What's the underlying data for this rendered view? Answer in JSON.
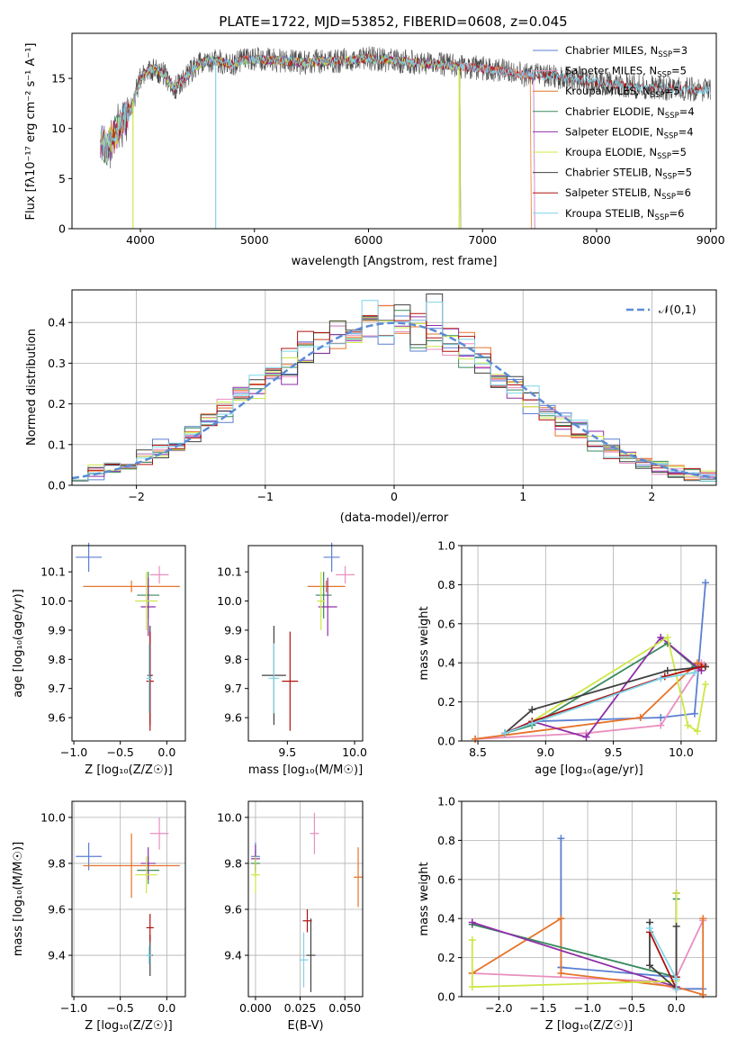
{
  "chart_data": [
    {
      "type": "line",
      "title": "PLATE=1722, MJD=53852, FIBERID=0608, z=0.045",
      "xlabel": "wavelength [Angstrom, rest frame]",
      "ylabel": "Flux [fλ10⁻¹⁷ erg cm⁻² s⁻¹ A⁻¹]",
      "xlim": [
        3400,
        9050
      ],
      "ylim": [
        0,
        19.5
      ],
      "xticks": [
        "4000",
        "5000",
        "6000",
        "7000",
        "8000",
        "9000"
      ],
      "yticks": [
        "0",
        "5",
        "10",
        "15"
      ],
      "grid": false,
      "legend_position": "top-right",
      "spectrum_envelope": {
        "wavelength": [
          3650,
          3700,
          3800,
          3900,
          4000,
          4100,
          4200,
          4300,
          4400,
          4500,
          4600,
          4700,
          4800,
          4900,
          5000,
          5200,
          5400,
          5600,
          5800,
          6000,
          6200,
          6400,
          6600,
          6800,
          7000,
          7200,
          7400,
          7600,
          7800,
          8000,
          8200,
          8400,
          8600,
          8800,
          9000
        ],
        "flux": [
          9.0,
          7.8,
          10.0,
          11.5,
          15.0,
          16.0,
          15.5,
          14.0,
          15.2,
          16.3,
          16.8,
          16.7,
          16.4,
          16.8,
          16.9,
          16.8,
          16.6,
          16.7,
          16.8,
          17.0,
          16.8,
          16.6,
          16.4,
          16.2,
          16.0,
          15.7,
          15.3,
          15.2,
          14.9,
          14.6,
          14.3,
          14.1,
          14.0,
          13.9,
          13.8
        ]
      },
      "series": [
        {
          "name": "Chabrier MILES, N_SSP=3",
          "color": "#5b7fd1",
          "wmax": 7450
        },
        {
          "name": "Salpeter MILES, N_SSP=5",
          "color": "#e88fbf",
          "wmax": 7450
        },
        {
          "name": "Kroupa MILES, N_SSP=5",
          "color": "#e6732a",
          "wmax": 7420
        },
        {
          "name": "Chabrier ELODIE, N_SSP=4",
          "color": "#3a8a5c",
          "wmax": 6800
        },
        {
          "name": "Salpeter ELODIE, N_SSP=4",
          "color": "#8e2ea8",
          "wmax": 6800
        },
        {
          "name": "Kroupa ELODIE, N_SSP=5",
          "color": "#cce845",
          "wmax": 6800
        },
        {
          "name": "Chabrier STELIB, N_SSP=5",
          "color": "#404040",
          "wmax": 9000
        },
        {
          "name": "Salpeter STELIB, N_SSP=6",
          "color": "#b01010",
          "wmax": 9000
        },
        {
          "name": "Kroupa STELIB, N_SSP=6",
          "color": "#7fd4e8",
          "wmax": 9000
        }
      ],
      "legend": [
        {
          "pre": "Chabrier MILES, N",
          "sub": "SSP",
          "post": "=3"
        },
        {
          "pre": "Salpeter MILES, N",
          "sub": "SSP",
          "post": "=5"
        },
        {
          "pre": "Kroupa MILES, N",
          "sub": "SSP",
          "post": "=5"
        },
        {
          "pre": "Chabrier ELODIE, N",
          "sub": "SSP",
          "post": "=4"
        },
        {
          "pre": "Salpeter ELODIE, N",
          "sub": "SSP",
          "post": "=4"
        },
        {
          "pre": "Kroupa ELODIE, N",
          "sub": "SSP",
          "post": "=5"
        },
        {
          "pre": "Chabrier STELIB, N",
          "sub": "SSP",
          "post": "=5"
        },
        {
          "pre": "Salpeter STELIB, N",
          "sub": "SSP",
          "post": "=6"
        },
        {
          "pre": "Kroupa STELIB, N",
          "sub": "SSP",
          "post": "=6"
        }
      ]
    },
    {
      "type": "bar",
      "xlabel": "(data-model)/error",
      "ylabel": "Normed distribution",
      "xlim": [
        -2.5,
        2.5
      ],
      "ylim": [
        0,
        0.48
      ],
      "xticks": [
        "−2",
        "−1",
        "0",
        "1",
        "2"
      ],
      "yticks": [
        "0.0",
        "0.1",
        "0.2",
        "0.3",
        "0.4"
      ],
      "grid": true,
      "legend_position": "top-right",
      "reference_curve": {
        "name": "𝒩(0,1)",
        "color": "#5b8bd6",
        "style": "dashed"
      },
      "bin_width": 0.125,
      "series": [
        {
          "name": "Chabrier MILES",
          "color": "#5b7fd1"
        },
        {
          "name": "Salpeter MILES",
          "color": "#e88fbf"
        },
        {
          "name": "Kroupa MILES",
          "color": "#e6732a"
        },
        {
          "name": "Chabrier ELODIE",
          "color": "#3a8a5c"
        },
        {
          "name": "Salpeter ELODIE",
          "color": "#8e2ea8"
        },
        {
          "name": "Kroupa ELODIE",
          "color": "#cce845"
        },
        {
          "name": "Chabrier STELIB",
          "color": "#404040"
        },
        {
          "name": "Salpeter STELIB",
          "color": "#b01010"
        },
        {
          "name": "Kroupa STELIB",
          "color": "#7fd4e8"
        }
      ]
    },
    {
      "type": "scatter",
      "xlabel": "Z [log₁₀(Z/Z☉)]",
      "ylabel": "age  [log₁₀(age/yr)]",
      "xlim": [
        -1.02,
        0.2
      ],
      "ylim": [
        9.52,
        10.19
      ],
      "xticks": [
        "−1.0",
        "−0.5",
        "0.0"
      ],
      "yticks": [
        "9.6",
        "9.7",
        "9.8",
        "9.9",
        "10.0",
        "10.1"
      ],
      "grid": false,
      "points": [
        {
          "x": -0.84,
          "y": 10.15,
          "xerr": 0.14,
          "yerr": 0.05,
          "color": "#5b7fd1"
        },
        {
          "x": -0.08,
          "y": 10.09,
          "xerr": 0.1,
          "yerr": 0.03,
          "color": "#e88fbf"
        },
        {
          "x": -0.38,
          "y": 10.05,
          "xerr": 0.52,
          "yerr": 0.02,
          "color": "#e6732a"
        },
        {
          "x": -0.2,
          "y": 10.02,
          "xerr": 0.12,
          "yerr": 0.08,
          "color": "#3a8a5c"
        },
        {
          "x": -0.2,
          "y": 9.98,
          "xerr": 0.08,
          "yerr": 0.1,
          "color": "#8e2ea8"
        },
        {
          "x": -0.22,
          "y": 10.0,
          "xerr": 0.12,
          "yerr": 0.1,
          "color": "#cce845"
        },
        {
          "x": -0.18,
          "y": 9.745,
          "xerr": 0.03,
          "yerr": 0.17,
          "color": "#404040"
        },
        {
          "x": -0.18,
          "y": 9.725,
          "xerr": 0.04,
          "yerr": 0.17,
          "color": "#b01010"
        },
        {
          "x": -0.19,
          "y": 9.735,
          "xerr": 0.03,
          "yerr": 0.12,
          "color": "#7fd4e8"
        }
      ]
    },
    {
      "type": "scatter",
      "xlabel": "mass [log₁₀(M/M☉)]",
      "ylabel": "",
      "xlim": [
        9.21,
        10.06
      ],
      "ylim": [
        9.52,
        10.19
      ],
      "xticks": [
        "9.5",
        "10.0"
      ],
      "yticks": [
        "9.6",
        "9.7",
        "9.8",
        "9.9",
        "10.0",
        "10.1"
      ],
      "grid": false,
      "points": [
        {
          "x": 9.83,
          "y": 10.15,
          "xerr": 0.06,
          "yerr": 0.05,
          "color": "#5b7fd1"
        },
        {
          "x": 9.93,
          "y": 10.09,
          "xerr": 0.07,
          "yerr": 0.03,
          "color": "#e88fbf"
        },
        {
          "x": 9.79,
          "y": 10.05,
          "xerr": 0.14,
          "yerr": 0.02,
          "color": "#e6732a"
        },
        {
          "x": 9.77,
          "y": 10.02,
          "xerr": 0.06,
          "yerr": 0.08,
          "color": "#3a8a5c"
        },
        {
          "x": 9.8,
          "y": 9.98,
          "xerr": 0.07,
          "yerr": 0.1,
          "color": "#8e2ea8"
        },
        {
          "x": 9.75,
          "y": 10.0,
          "xerr": 0.03,
          "yerr": 0.1,
          "color": "#cce845"
        },
        {
          "x": 9.4,
          "y": 9.745,
          "xerr": 0.09,
          "yerr": 0.17,
          "color": "#404040"
        },
        {
          "x": 9.52,
          "y": 9.725,
          "xerr": 0.06,
          "yerr": 0.17,
          "color": "#b01010"
        },
        {
          "x": 9.4,
          "y": 9.735,
          "xerr": 0.04,
          "yerr": 0.12,
          "color": "#7fd4e8"
        }
      ]
    },
    {
      "type": "line",
      "xlabel": "age  [log₁₀(age/yr)]",
      "ylabel": "mass weight",
      "xlim": [
        8.38,
        10.26
      ],
      "ylim": [
        0,
        1.0
      ],
      "xticks": [
        "8.5",
        "9.0",
        "9.5",
        "10.0"
      ],
      "yticks": [
        "0.0",
        "0.2",
        "0.4",
        "0.6",
        "0.8",
        "1.0"
      ],
      "grid": true,
      "series": [
        {
          "name": "Chabrier MILES",
          "color": "#5b7fd1",
          "x": [
            8.7,
            8.9,
            9.85,
            10.1,
            10.18
          ],
          "y": [
            0.04,
            0.1,
            0.12,
            0.14,
            0.81
          ]
        },
        {
          "name": "Salpeter MILES",
          "color": "#e88fbf",
          "x": [
            8.48,
            9.3,
            9.85,
            10.15,
            10.17
          ],
          "y": [
            0.01,
            0.04,
            0.08,
            0.4,
            0.39
          ]
        },
        {
          "name": "Kroupa MILES",
          "color": "#e6732a",
          "x": [
            8.48,
            9.7,
            10.12,
            10.18
          ],
          "y": [
            0.01,
            0.12,
            0.4,
            0.38
          ]
        },
        {
          "name": "Chabrier ELODIE",
          "color": "#3a8a5c",
          "x": [
            8.7,
            8.9,
            9.9,
            10.1
          ],
          "y": [
            0.04,
            0.08,
            0.5,
            0.38
          ]
        },
        {
          "name": "Salpeter ELODIE",
          "color": "#8e2ea8",
          "x": [
            8.9,
            9.3,
            9.85,
            10.15
          ],
          "y": [
            0.1,
            0.02,
            0.53,
            0.36
          ]
        },
        {
          "name": "Kroupa ELODIE",
          "color": "#cce845",
          "x": [
            8.9,
            9.9,
            10.05,
            10.12,
            10.18
          ],
          "y": [
            0.1,
            0.53,
            0.08,
            0.05,
            0.29
          ]
        },
        {
          "name": "Chabrier STELIB",
          "color": "#404040",
          "x": [
            8.7,
            8.9,
            9.9,
            10.18
          ],
          "y": [
            0.04,
            0.16,
            0.36,
            0.38
          ]
        },
        {
          "name": "Salpeter STELIB",
          "color": "#b01010",
          "x": [
            8.7,
            8.9,
            9.88,
            10.15
          ],
          "y": [
            0.04,
            0.1,
            0.33,
            0.38
          ]
        },
        {
          "name": "Kroupa STELIB",
          "color": "#7fd4e8",
          "x": [
            8.7,
            8.9,
            9.85,
            10.1
          ],
          "y": [
            0.04,
            0.09,
            0.32,
            0.35
          ]
        }
      ]
    },
    {
      "type": "scatter",
      "xlabel": "Z [log₁₀(Z/Z☉)]",
      "ylabel": "mass [log₁₀(M/M☉)]",
      "xlim": [
        -1.02,
        0.2
      ],
      "ylim": [
        9.22,
        10.07
      ],
      "xticks": [
        "−1.0",
        "−0.5",
        "0.0"
      ],
      "yticks": [
        "9.4",
        "9.6",
        "9.8",
        "10.0"
      ],
      "grid": true,
      "points": [
        {
          "x": -0.84,
          "y": 9.83,
          "xerr": 0.14,
          "yerr": 0.06,
          "color": "#5b7fd1"
        },
        {
          "x": -0.08,
          "y": 9.93,
          "xerr": 0.1,
          "yerr": 0.07,
          "color": "#e88fbf"
        },
        {
          "x": -0.38,
          "y": 9.79,
          "xerr": 0.52,
          "yerr": 0.14,
          "color": "#e6732a"
        },
        {
          "x": -0.2,
          "y": 9.77,
          "xerr": 0.12,
          "yerr": 0.06,
          "color": "#3a8a5c"
        },
        {
          "x": -0.2,
          "y": 9.8,
          "xerr": 0.08,
          "yerr": 0.07,
          "color": "#8e2ea8"
        },
        {
          "x": -0.22,
          "y": 9.75,
          "xerr": 0.12,
          "yerr": 0.08,
          "color": "#cce845"
        },
        {
          "x": -0.18,
          "y": 9.4,
          "xerr": 0.03,
          "yerr": 0.09,
          "color": "#404040"
        },
        {
          "x": -0.18,
          "y": 9.52,
          "xerr": 0.04,
          "yerr": 0.06,
          "color": "#b01010"
        },
        {
          "x": -0.19,
          "y": 9.4,
          "xerr": 0.03,
          "yerr": 0.04,
          "color": "#7fd4e8"
        }
      ]
    },
    {
      "type": "scatter",
      "xlabel": "E(B-V)",
      "ylabel": "",
      "xlim": [
        -0.004,
        0.06
      ],
      "ylim": [
        9.22,
        10.07
      ],
      "xticks": [
        "0.000",
        "0.025",
        "0.050"
      ],
      "yticks": [
        "9.4",
        "9.6",
        "9.8",
        "10.0"
      ],
      "grid": true,
      "points": [
        {
          "x": 0.0,
          "y": 9.83,
          "yerr": 0.06,
          "color": "#5b7fd1"
        },
        {
          "x": 0.033,
          "y": 9.93,
          "yerr": 0.09,
          "color": "#e88fbf"
        },
        {
          "x": 0.0575,
          "y": 9.74,
          "yerr": 0.13,
          "color": "#e6732a"
        },
        {
          "x": 0.0,
          "y": 9.8,
          "yerr": 0.06,
          "color": "#3a8a5c"
        },
        {
          "x": 0.0,
          "y": 9.82,
          "yerr": 0.06,
          "color": "#8e2ea8"
        },
        {
          "x": 0.0,
          "y": 9.75,
          "yerr": 0.08,
          "color": "#cce845"
        },
        {
          "x": 0.031,
          "y": 9.4,
          "yerr": 0.16,
          "color": "#404040"
        },
        {
          "x": 0.029,
          "y": 9.55,
          "yerr": 0.05,
          "color": "#b01010"
        },
        {
          "x": 0.027,
          "y": 9.38,
          "yerr": 0.12,
          "color": "#7fd4e8"
        }
      ]
    },
    {
      "type": "line",
      "xlabel": "Z [log₁₀(Z/Z☉)]",
      "ylabel": "mass weight",
      "xlim": [
        -2.42,
        0.45
      ],
      "ylim": [
        0,
        1.0
      ],
      "xticks": [
        "−2.0",
        "−1.5",
        "−1.0",
        "−0.5",
        "0.0"
      ],
      "yticks": [
        "0.0",
        "0.2",
        "0.4",
        "0.6",
        "0.8",
        "1.0"
      ],
      "grid": true,
      "series": [
        {
          "name": "Chabrier MILES",
          "color": "#5b7fd1",
          "x": [
            -1.3,
            -1.3,
            -1.3,
            0.0,
            0.0,
            0.3
          ],
          "y": [
            0.81,
            0.15,
            0.15,
            0.1,
            0.04,
            0.04
          ]
        },
        {
          "name": "Salpeter MILES",
          "color": "#e88fbf",
          "x": [
            -2.3,
            -0.3,
            0.0,
            0.0,
            0.3
          ],
          "y": [
            0.12,
            0.08,
            0.04,
            0.1,
            0.39
          ]
        },
        {
          "name": "Kroupa MILES",
          "color": "#e6732a",
          "x": [
            -2.3,
            -1.3,
            -1.3,
            0.0,
            0.3,
            0.3
          ],
          "y": [
            0.12,
            0.4,
            0.12,
            0.05,
            0.01,
            0.4
          ]
        },
        {
          "name": "Chabrier ELODIE",
          "color": "#3a8a5c",
          "x": [
            -2.3,
            0.0,
            0.0
          ],
          "y": [
            0.37,
            0.1,
            0.5
          ]
        },
        {
          "name": "Salpeter ELODIE",
          "color": "#8e2ea8",
          "x": [
            -2.3,
            0.0,
            0.0
          ],
          "y": [
            0.38,
            0.05,
            0.53
          ]
        },
        {
          "name": "Kroupa ELODIE",
          "color": "#cce845",
          "x": [
            -2.3,
            -2.3,
            0.0,
            0.0
          ],
          "y": [
            0.29,
            0.05,
            0.08,
            0.53
          ]
        },
        {
          "name": "Chabrier STELIB",
          "color": "#404040",
          "x": [
            -0.3,
            -0.3,
            0.0,
            0.0
          ],
          "y": [
            0.38,
            0.16,
            0.04,
            0.36
          ]
        },
        {
          "name": "Salpeter STELIB",
          "color": "#b01010",
          "x": [
            -0.3,
            0.0,
            0.0
          ],
          "y": [
            0.33,
            0.04,
            0.1
          ]
        },
        {
          "name": "Kroupa STELIB",
          "color": "#7fd4e8",
          "x": [
            -0.3,
            0.0,
            0.0
          ],
          "y": [
            0.35,
            0.09,
            0.04
          ]
        }
      ]
    }
  ]
}
